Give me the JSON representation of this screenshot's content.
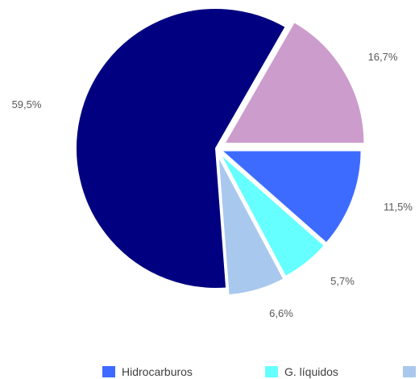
{
  "chart_data": {
    "type": "pie",
    "slices": [
      {
        "name": "Hidrocarburos",
        "value": 11.5,
        "label": "11,5%",
        "color": "#3D6BFF"
      },
      {
        "name": "G. líquidos",
        "value": 5.7,
        "label": "5,7%",
        "color": "#66FFFF"
      },
      {
        "name": "",
        "value": 6.6,
        "label": "6,6%",
        "color": "#A9C8EE"
      },
      {
        "name": "",
        "value": 59.5,
        "label": "59,5%",
        "color": "#000080"
      },
      {
        "name": "",
        "value": 16.7,
        "label": "16,7%",
        "color": "#CC9CCC"
      }
    ],
    "legend": {
      "placement": "bottom",
      "entries": [
        {
          "label": "Hidrocarburos",
          "color": "#3D6BFF"
        },
        {
          "label": "G. líquidos",
          "color": "#66FFFF"
        },
        {
          "label": "",
          "color": "#A9C8EE"
        }
      ]
    }
  }
}
